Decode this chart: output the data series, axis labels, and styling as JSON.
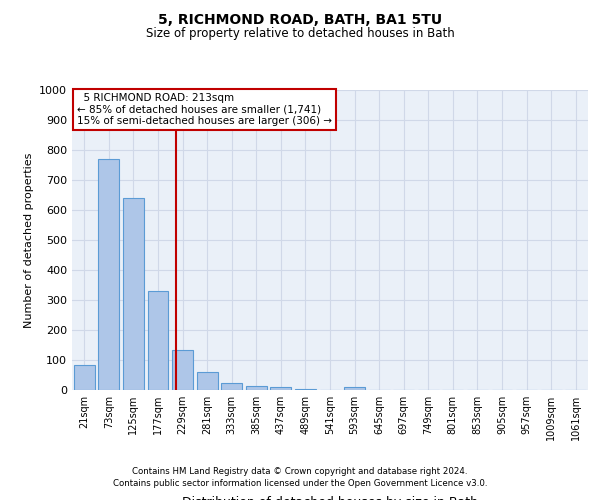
{
  "title": "5, RICHMOND ROAD, BATH, BA1 5TU",
  "subtitle": "Size of property relative to detached houses in Bath",
  "xlabel": "Distribution of detached houses by size in Bath",
  "ylabel": "Number of detached properties",
  "footer1": "Contains HM Land Registry data © Crown copyright and database right 2024.",
  "footer2": "Contains public sector information licensed under the Open Government Licence v3.0.",
  "categories": [
    "21sqm",
    "73sqm",
    "125sqm",
    "177sqm",
    "229sqm",
    "281sqm",
    "333sqm",
    "385sqm",
    "437sqm",
    "489sqm",
    "541sqm",
    "593sqm",
    "645sqm",
    "697sqm",
    "749sqm",
    "801sqm",
    "853sqm",
    "905sqm",
    "957sqm",
    "1009sqm",
    "1061sqm"
  ],
  "values": [
    85,
    770,
    640,
    330,
    135,
    60,
    22,
    15,
    10,
    5,
    0,
    10,
    0,
    0,
    0,
    0,
    0,
    0,
    0,
    0,
    0
  ],
  "bar_color": "#aec6e8",
  "bar_edge_color": "#5b9bd5",
  "vline_pos": 3.72,
  "vline_color": "#c00000",
  "annotation_text": "  5 RICHMOND ROAD: 213sqm\n← 85% of detached houses are smaller (1,741)\n15% of semi-detached houses are larger (306) →",
  "annotation_box_color": "#c00000",
  "ylim": [
    0,
    1000
  ],
  "yticks": [
    0,
    100,
    200,
    300,
    400,
    500,
    600,
    700,
    800,
    900,
    1000
  ],
  "grid_color": "#d0d8e8",
  "bg_color": "#eaf0f8"
}
